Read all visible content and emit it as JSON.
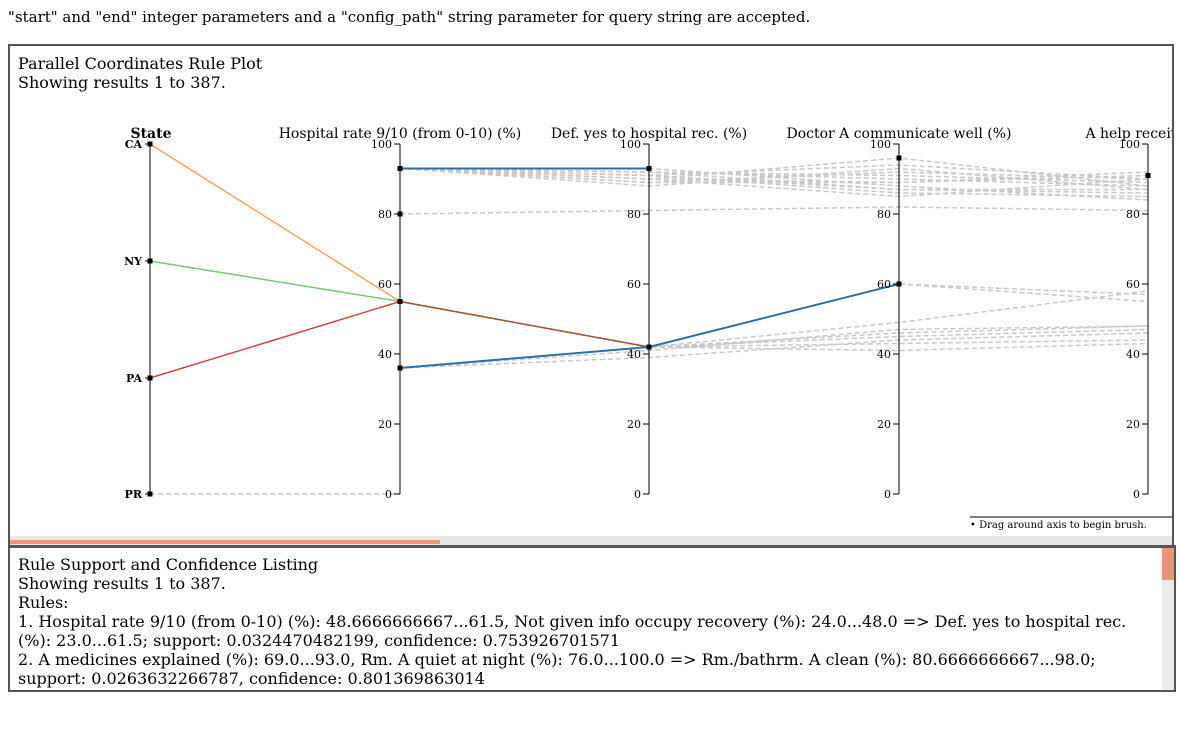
{
  "intro_text": "\"start\" and \"end\" integer parameters and a \"config_path\" string parameter for query string are accepted.",
  "plot_panel": {
    "title": "Parallel Coordinates Rule Plot",
    "subtitle": "Showing results 1 to 387.",
    "brush_hint": "• Drag around axis to begin brush."
  },
  "rules_panel": {
    "title": "Rule Support and Confidence Listing",
    "subtitle": "Showing results 1 to 387.",
    "rules_label": "Rules:",
    "rules": [
      "1. Hospital rate 9/10 (from 0-10) (%): 48.6666666667...61.5, Not given info occupy recovery (%): 24.0...48.0 => Def. yes to hospital rec. (%): 23.0...61.5; support: 0.0324470482199, confidence: 0.753926701571",
      "2. A medicines explained (%): 69.0...93.0, Rm. A quiet at night (%): 76.0...100.0 => Rm./bathrm. A clean (%): 80.6666666667...98.0; support: 0.0263632266787, confidence: 0.801369863014"
    ]
  },
  "chart_data": {
    "type": "parallel-coordinates",
    "axes": [
      {
        "name": "State",
        "type": "categorical",
        "categories": [
          "CA",
          "NY",
          "PA",
          "PR"
        ]
      },
      {
        "name": "Hospital rate 9/10 (from 0-10) (%)",
        "type": "numeric",
        "range": [
          0,
          100
        ],
        "ticks": [
          0,
          20,
          40,
          60,
          80,
          100
        ]
      },
      {
        "name": "Def. yes to hospital rec. (%)",
        "type": "numeric",
        "range": [
          0,
          100
        ],
        "ticks": [
          0,
          20,
          40,
          60,
          80,
          100
        ]
      },
      {
        "name": "Doctor A communicate well (%)",
        "type": "numeric",
        "range": [
          0,
          100
        ],
        "ticks": [
          0,
          20,
          40,
          60,
          80,
          100
        ]
      },
      {
        "name": "A help received A",
        "type": "numeric",
        "range": [
          0,
          100
        ],
        "ticks": [
          0,
          20,
          40,
          60,
          80,
          100
        ]
      }
    ],
    "colors": {
      "orange": "#f4a460",
      "green": "#7cc576",
      "red": "#d04545",
      "blue": "#2e6fa7",
      "brown": "#a0522d",
      "gray": "#c8c8c8"
    },
    "highlighted_lines": [
      {
        "color": "#f4a460",
        "values": [
          "CA",
          55
        ]
      },
      {
        "color": "#7cc576",
        "values": [
          "NY",
          55
        ]
      },
      {
        "color": "#d04545",
        "values": [
          "PA",
          55
        ]
      },
      {
        "color": "#a0522d",
        "values": [
          null,
          55,
          42
        ]
      },
      {
        "color": "#2e6fa7",
        "values": [
          null,
          93,
          93
        ]
      },
      {
        "color": "#2e6fa7",
        "values": [
          null,
          36,
          42,
          60
        ]
      }
    ],
    "background_lines": [
      [
        "PR",
        0
      ],
      [
        null,
        80,
        81,
        82,
        81
      ],
      [
        null,
        93,
        92,
        90,
        88
      ],
      [
        null,
        93,
        91,
        87,
        86
      ],
      [
        null,
        93,
        90,
        89,
        92
      ],
      [
        null,
        93,
        89,
        92,
        90
      ],
      [
        null,
        93,
        88,
        93,
        87
      ],
      [
        null,
        93,
        93,
        88,
        84
      ],
      [
        null,
        93,
        92,
        91,
        89
      ],
      [
        null,
        93,
        91,
        86,
        85
      ],
      [
        null,
        93,
        90,
        85,
        90
      ],
      [
        null,
        93,
        89,
        89,
        91
      ],
      [
        null,
        93,
        92,
        87,
        87
      ],
      [
        null,
        93,
        90,
        96,
        88
      ],
      [
        null,
        93,
        91,
        94,
        90
      ],
      [
        null,
        36,
        39,
        44,
        46
      ],
      [
        null,
        36,
        41,
        47,
        48
      ],
      [
        null,
        36,
        42,
        49,
        58
      ],
      [
        null,
        55,
        42,
        41,
        43
      ],
      [
        null,
        55,
        42,
        45,
        47
      ],
      [
        null,
        55,
        42,
        60,
        55
      ],
      [
        null,
        55,
        42,
        43,
        44
      ],
      [
        null,
        55,
        42,
        46,
        48
      ],
      [
        null,
        55,
        42,
        60,
        57
      ]
    ],
    "axis_markers": [
      {
        "axis": 3,
        "value": 96
      },
      {
        "axis": 4,
        "value": 91
      }
    ]
  }
}
